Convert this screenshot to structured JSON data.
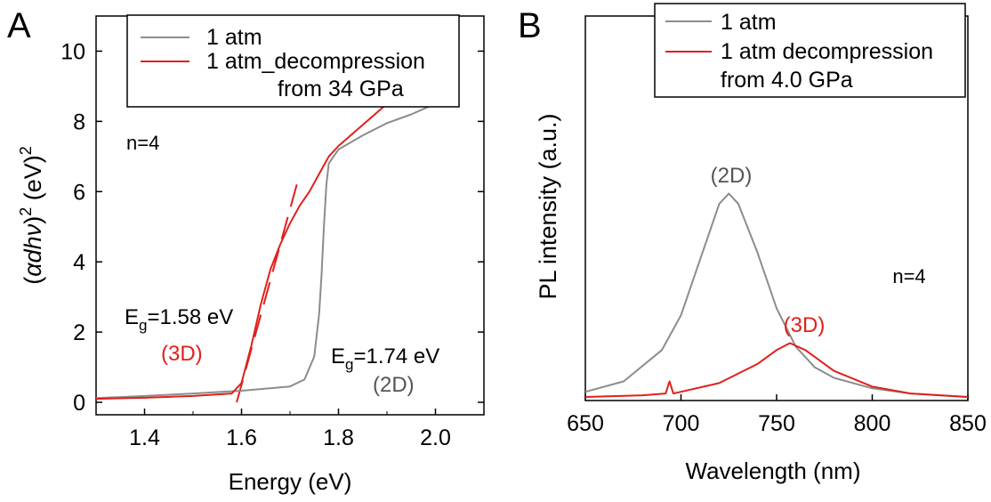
{
  "panels": {
    "a": {
      "letter": "A"
    },
    "b": {
      "letter": "B"
    }
  },
  "chart_data": [
    {
      "type": "line",
      "panel": "A",
      "xlabel": "Energy (eV)",
      "ylabel_parts": {
        "open": "(",
        "alpha": "α",
        "dhv": "dhν",
        "close": ")",
        "sup1": "2",
        "unit": " (eV)",
        "sup2": "2"
      },
      "xlim": [
        1.3,
        2.1
      ],
      "ylim": [
        0,
        11
      ],
      "xticks": [
        1.4,
        1.6,
        1.8,
        2.0
      ],
      "xtick_labels": [
        "1.4",
        "1.6",
        "1.8",
        "2.0"
      ],
      "yticks": [
        0,
        2,
        4,
        6,
        8,
        10
      ],
      "ytick_labels": [
        "0",
        "2",
        "4",
        "6",
        "8",
        "10"
      ],
      "grid": false,
      "legend_position": "top-right",
      "legend": {
        "items": [
          {
            "label": "1 atm",
            "color": "#8c8c8c"
          },
          {
            "label": "1 atm_decompression",
            "label2": "from 34 GPa",
            "color": "#e0201b"
          }
        ]
      },
      "series": [
        {
          "name": "1 atm",
          "color": "#8c8c8c",
          "x": [
            1.3,
            1.4,
            1.5,
            1.6,
            1.7,
            1.73,
            1.75,
            1.76,
            1.765,
            1.77,
            1.775,
            1.78,
            1.79,
            1.8,
            1.85,
            1.9,
            1.95,
            2.0,
            2.02
          ],
          "y": [
            0.12,
            0.18,
            0.25,
            0.33,
            0.45,
            0.65,
            1.3,
            2.5,
            3.6,
            5.0,
            6.2,
            6.8,
            7.0,
            7.2,
            7.6,
            7.95,
            8.2,
            8.5,
            8.6
          ]
        },
        {
          "name": "1 atm_decompression from 34 GPa",
          "color": "#e0201b",
          "x": [
            1.3,
            1.4,
            1.5,
            1.58,
            1.6,
            1.62,
            1.64,
            1.66,
            1.68,
            1.7,
            1.72,
            1.74,
            1.76,
            1.78,
            1.8,
            1.85,
            1.9,
            1.93
          ],
          "y": [
            0.1,
            0.13,
            0.18,
            0.25,
            0.55,
            1.6,
            2.8,
            3.8,
            4.5,
            5.1,
            5.6,
            6.0,
            6.5,
            7.0,
            7.3,
            7.9,
            8.5,
            8.8
          ]
        }
      ],
      "fit_line": {
        "color": "#e0201b",
        "x": [
          1.59,
          1.72
        ],
        "y": [
          0,
          6.5
        ]
      },
      "annotations": [
        {
          "text": "n=4",
          "x": 1.44,
          "y": 7.9,
          "color": "#000000"
        },
        {
          "text": "E",
          "sub": "g",
          "rest": "=1.58 eV",
          "x": 1.42,
          "y": 2.5,
          "color": "#000000"
        },
        {
          "text": "(3D)",
          "x": 1.48,
          "y": 1.35,
          "color": "#e0201b"
        },
        {
          "text": "E",
          "sub": "g",
          "rest": "=1.74 eV",
          "x": 1.89,
          "y": 1.2,
          "color": "#000000"
        },
        {
          "text": "(2D)",
          "x": 1.92,
          "y": 0.4,
          "color": "#555555"
        }
      ]
    },
    {
      "type": "line",
      "panel": "B",
      "xlabel": "Wavelength (nm)",
      "ylabel": "PL intensity (a.u.)",
      "xlim": [
        650,
        850
      ],
      "ylim": [
        0,
        1.1
      ],
      "xticks": [
        650,
        700,
        750,
        800,
        850
      ],
      "xtick_labels": [
        "650",
        "700",
        "750",
        "800",
        "850"
      ],
      "yticks": [],
      "grid": false,
      "legend_position": "top-right",
      "legend": {
        "items": [
          {
            "label": "1 atm",
            "color": "#8c8c8c"
          },
          {
            "label": "1 atm decompression",
            "label2": "from 4.0 GPa",
            "color": "#e0201b"
          }
        ]
      },
      "series": [
        {
          "name": "1 atm",
          "color": "#8c8c8c",
          "x": [
            650,
            670,
            690,
            700,
            710,
            720,
            725,
            730,
            740,
            750,
            760,
            770,
            780,
            800,
            820,
            850
          ],
          "y": [
            0.02,
            0.05,
            0.14,
            0.24,
            0.4,
            0.56,
            0.59,
            0.56,
            0.42,
            0.26,
            0.15,
            0.09,
            0.06,
            0.03,
            0.015,
            0.005
          ]
        },
        {
          "name": "1 atm decompression from 4.0 GPa",
          "color": "#e0201b",
          "x": [
            650,
            680,
            692,
            694,
            696,
            700,
            720,
            740,
            750,
            757,
            765,
            780,
            800,
            820,
            850
          ],
          "y": [
            0.005,
            0.01,
            0.015,
            0.05,
            0.015,
            0.02,
            0.045,
            0.1,
            0.14,
            0.16,
            0.14,
            0.08,
            0.035,
            0.015,
            0.005
          ]
        }
      ],
      "annotations": [
        {
          "text": "(2D)",
          "x": 726,
          "y": 0.66,
          "color": "#555555"
        },
        {
          "text": "(3D)",
          "x": 759,
          "y": 0.21,
          "color": "#e0201b"
        },
        {
          "text": "n=4",
          "x": 826,
          "y": 0.4,
          "color": "#000000"
        }
      ]
    }
  ]
}
